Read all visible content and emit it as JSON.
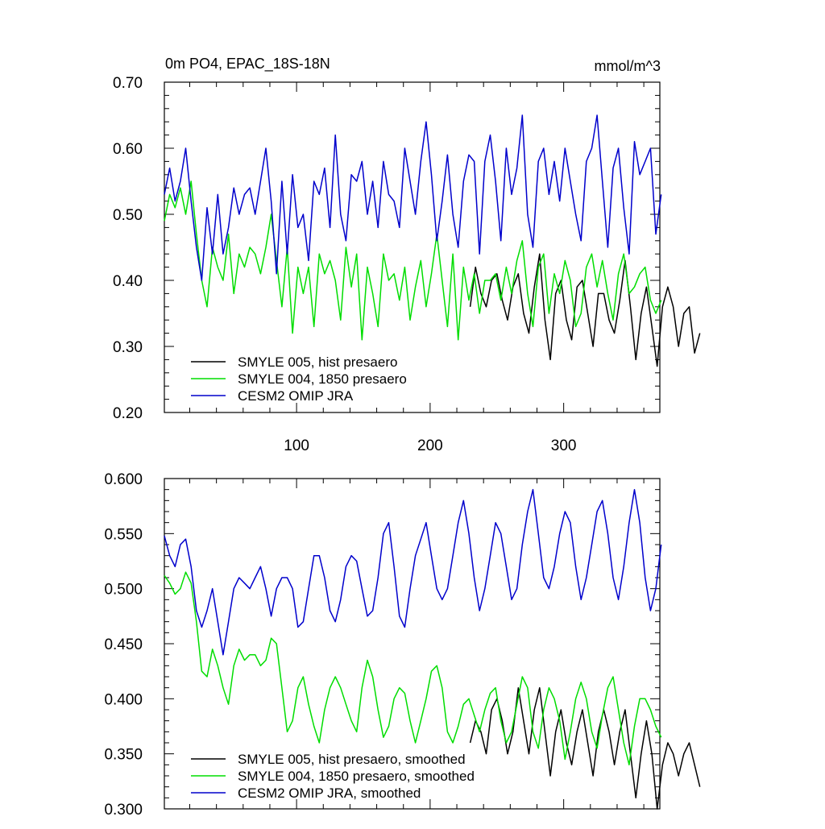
{
  "chart_data": [
    {
      "type": "line",
      "title": "0m PO4, EPAC_18S-18N",
      "units_label": "mmol/m^3",
      "xlim": [
        1,
        372
      ],
      "ylim": [
        0.2,
        0.7
      ],
      "xticks": [
        100,
        200,
        300
      ],
      "yticks": [
        "0.20",
        "0.30",
        "0.40",
        "0.50",
        "0.60",
        "0.70"
      ],
      "legend_position": "bottom-left",
      "series": [
        {
          "name": "SMYLE 005, hist presaero",
          "color": "#000000",
          "x_start": 230,
          "x_step": 4,
          "values": [
            0.36,
            0.42,
            0.38,
            0.36,
            0.4,
            0.41,
            0.37,
            0.34,
            0.39,
            0.41,
            0.35,
            0.32,
            0.39,
            0.44,
            0.34,
            0.28,
            0.38,
            0.4,
            0.34,
            0.31,
            0.39,
            0.4,
            0.35,
            0.3,
            0.38,
            0.38,
            0.34,
            0.32,
            0.37,
            0.43,
            0.36,
            0.28,
            0.35,
            0.39,
            0.33,
            0.27,
            0.36,
            0.39,
            0.36,
            0.3,
            0.35,
            0.36,
            0.29,
            0.32
          ]
        },
        {
          "name": "SMYLE 004, 1850 presaero",
          "color": "#00dd00",
          "x_start": 1,
          "x_step": 4,
          "values": [
            0.49,
            0.53,
            0.51,
            0.54,
            0.5,
            0.55,
            0.47,
            0.4,
            0.36,
            0.45,
            0.42,
            0.4,
            0.47,
            0.38,
            0.44,
            0.42,
            0.45,
            0.44,
            0.41,
            0.45,
            0.5,
            0.43,
            0.36,
            0.45,
            0.32,
            0.42,
            0.38,
            0.42,
            0.33,
            0.44,
            0.41,
            0.43,
            0.4,
            0.34,
            0.45,
            0.39,
            0.44,
            0.31,
            0.42,
            0.38,
            0.33,
            0.44,
            0.4,
            0.41,
            0.37,
            0.42,
            0.34,
            0.39,
            0.43,
            0.36,
            0.41,
            0.47,
            0.4,
            0.33,
            0.44,
            0.31,
            0.42,
            0.37,
            0.41,
            0.35,
            0.4,
            0.4,
            0.41,
            0.37,
            0.42,
            0.38,
            0.43,
            0.46,
            0.38,
            0.33,
            0.42,
            0.44,
            0.35,
            0.41,
            0.38,
            0.43,
            0.4,
            0.33,
            0.35,
            0.42,
            0.44,
            0.39,
            0.43,
            0.38,
            0.34,
            0.41,
            0.44,
            0.38,
            0.39,
            0.41,
            0.42,
            0.37,
            0.35,
            0.37
          ]
        },
        {
          "name": "CESM2 OMIP JRA",
          "color": "#0000cc",
          "x_start": 1,
          "x_step": 4,
          "values": [
            0.53,
            0.57,
            0.52,
            0.55,
            0.6,
            0.52,
            0.45,
            0.4,
            0.51,
            0.44,
            0.53,
            0.44,
            0.48,
            0.54,
            0.5,
            0.53,
            0.54,
            0.5,
            0.55,
            0.6,
            0.52,
            0.41,
            0.55,
            0.44,
            0.56,
            0.48,
            0.5,
            0.43,
            0.55,
            0.53,
            0.57,
            0.48,
            0.62,
            0.5,
            0.46,
            0.56,
            0.55,
            0.58,
            0.5,
            0.55,
            0.48,
            0.58,
            0.53,
            0.52,
            0.48,
            0.6,
            0.55,
            0.5,
            0.58,
            0.64,
            0.56,
            0.46,
            0.52,
            0.59,
            0.5,
            0.45,
            0.55,
            0.59,
            0.58,
            0.44,
            0.58,
            0.62,
            0.55,
            0.46,
            0.6,
            0.53,
            0.57,
            0.65,
            0.5,
            0.45,
            0.58,
            0.6,
            0.53,
            0.58,
            0.52,
            0.6,
            0.55,
            0.5,
            0.46,
            0.58,
            0.6,
            0.65,
            0.55,
            0.45,
            0.57,
            0.6,
            0.51,
            0.44,
            0.61,
            0.56,
            0.58,
            0.6,
            0.47,
            0.53
          ]
        }
      ]
    },
    {
      "type": "line",
      "title": "",
      "xlim": [
        1,
        372
      ],
      "ylim": [
        0.3,
        0.6
      ],
      "xticks": [
        100,
        200,
        300
      ],
      "yticks": [
        "0.300",
        "0.350",
        "0.400",
        "0.450",
        "0.500",
        "0.550",
        "0.600"
      ],
      "legend_position": "bottom-left",
      "series": [
        {
          "name": "SMYLE 005, hist presaero, smoothed",
          "color": "#000000",
          "x_start": 230,
          "x_step": 4,
          "values": [
            0.36,
            0.38,
            0.37,
            0.35,
            0.39,
            0.4,
            0.38,
            0.35,
            0.37,
            0.41,
            0.38,
            0.35,
            0.39,
            0.41,
            0.37,
            0.33,
            0.37,
            0.39,
            0.36,
            0.34,
            0.37,
            0.39,
            0.36,
            0.33,
            0.37,
            0.39,
            0.37,
            0.34,
            0.37,
            0.39,
            0.35,
            0.31,
            0.35,
            0.38,
            0.35,
            0.3,
            0.34,
            0.36,
            0.35,
            0.33,
            0.35,
            0.36,
            0.34,
            0.32
          ]
        },
        {
          "name": "SMYLE 004, 1850 presaero, smoothed",
          "color": "#00dd00",
          "x_start": 1,
          "x_step": 4,
          "values": [
            0.512,
            0.505,
            0.495,
            0.5,
            0.515,
            0.505,
            0.47,
            0.425,
            0.42,
            0.445,
            0.43,
            0.41,
            0.395,
            0.43,
            0.445,
            0.435,
            0.44,
            0.44,
            0.43,
            0.435,
            0.455,
            0.45,
            0.41,
            0.37,
            0.38,
            0.41,
            0.42,
            0.395,
            0.375,
            0.36,
            0.39,
            0.41,
            0.42,
            0.41,
            0.395,
            0.38,
            0.37,
            0.41,
            0.435,
            0.42,
            0.39,
            0.365,
            0.375,
            0.4,
            0.41,
            0.405,
            0.38,
            0.36,
            0.38,
            0.4,
            0.425,
            0.43,
            0.41,
            0.37,
            0.36,
            0.375,
            0.395,
            0.4,
            0.385,
            0.37,
            0.39,
            0.405,
            0.41,
            0.38,
            0.36,
            0.37,
            0.395,
            0.42,
            0.41,
            0.37,
            0.355,
            0.39,
            0.41,
            0.4,
            0.38,
            0.345,
            0.37,
            0.4,
            0.415,
            0.4,
            0.37,
            0.355,
            0.385,
            0.41,
            0.42,
            0.39,
            0.36,
            0.34,
            0.375,
            0.4,
            0.4,
            0.39,
            0.375,
            0.365
          ]
        },
        {
          "name": "CESM2 OMIP JRA, smoothed",
          "color": "#0000cc",
          "x_start": 1,
          "x_step": 4,
          "values": [
            0.548,
            0.53,
            0.52,
            0.54,
            0.545,
            0.52,
            0.48,
            0.465,
            0.48,
            0.5,
            0.47,
            0.44,
            0.47,
            0.5,
            0.51,
            0.505,
            0.5,
            0.51,
            0.52,
            0.5,
            0.475,
            0.5,
            0.51,
            0.51,
            0.5,
            0.465,
            0.47,
            0.5,
            0.53,
            0.53,
            0.51,
            0.48,
            0.47,
            0.49,
            0.52,
            0.53,
            0.525,
            0.5,
            0.475,
            0.48,
            0.51,
            0.55,
            0.56,
            0.52,
            0.475,
            0.465,
            0.5,
            0.53,
            0.545,
            0.56,
            0.53,
            0.5,
            0.49,
            0.5,
            0.53,
            0.56,
            0.58,
            0.55,
            0.51,
            0.48,
            0.5,
            0.53,
            0.56,
            0.55,
            0.52,
            0.49,
            0.5,
            0.54,
            0.57,
            0.59,
            0.55,
            0.51,
            0.5,
            0.52,
            0.55,
            0.57,
            0.56,
            0.52,
            0.49,
            0.51,
            0.54,
            0.57,
            0.58,
            0.55,
            0.51,
            0.49,
            0.52,
            0.56,
            0.59,
            0.56,
            0.51,
            0.48,
            0.5,
            0.54
          ]
        }
      ]
    }
  ]
}
